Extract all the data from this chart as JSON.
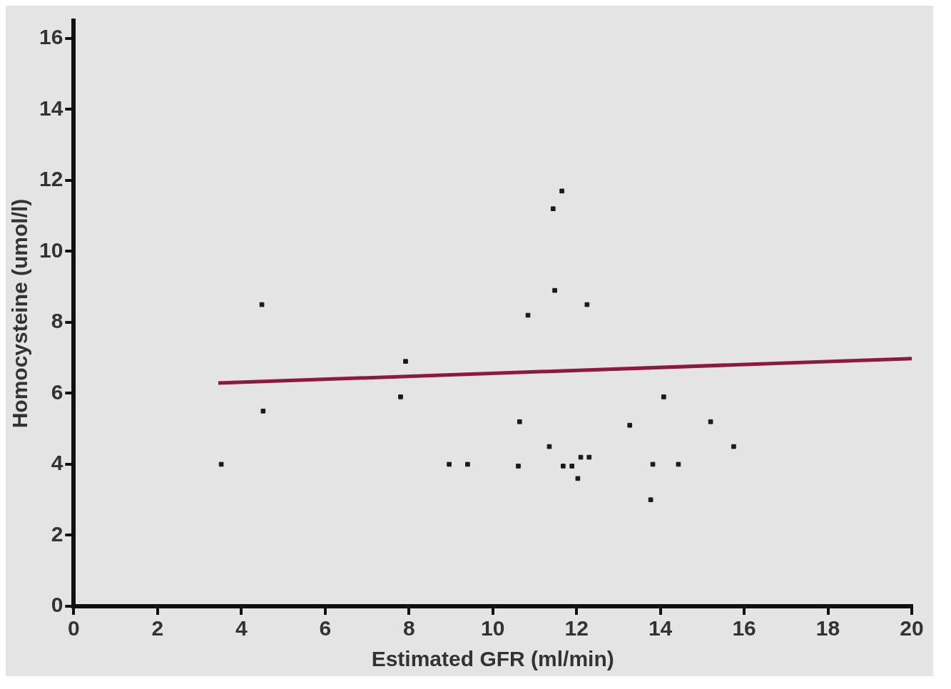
{
  "chart_data": {
    "type": "scatter",
    "xlabel": "Estimated GFR (ml/min)",
    "ylabel": "Homocysteine (umol/l)",
    "xlim": [
      0,
      20
    ],
    "xticks": [
      0,
      2,
      4,
      6,
      8,
      10,
      12,
      14,
      16,
      18,
      20
    ],
    "ylim": [
      0,
      16.5
    ],
    "yticks": [
      0,
      2,
      4,
      6,
      8,
      10,
      12,
      14,
      16
    ],
    "grid": false,
    "legend": false,
    "marker": "square",
    "series": [
      {
        "type": "scatter",
        "color": "#1a1a1a",
        "x": [
          3.52,
          4.49,
          4.52,
          7.8,
          7.92,
          8.96,
          9.4,
          10.61,
          10.64,
          10.84,
          11.35,
          11.44,
          11.48,
          11.65,
          11.68,
          11.89,
          12.03,
          12.1,
          12.3,
          12.25,
          13.27,
          13.77,
          13.82,
          14.08,
          14.43,
          15.2,
          15.75
        ],
        "values": [
          4.0,
          8.5,
          5.5,
          5.9,
          6.9,
          4.0,
          4.0,
          3.95,
          5.2,
          8.2,
          4.5,
          11.2,
          8.9,
          11.7,
          3.95,
          3.95,
          3.6,
          4.2,
          4.2,
          8.5,
          5.1,
          3.0,
          4.0,
          5.9,
          4.0,
          5.2,
          4.5
        ]
      },
      {
        "type": "line",
        "color": "#8b1a3e",
        "x": [
          3.45,
          20
        ],
        "values": [
          6.29,
          6.98
        ],
        "marker": "none",
        "line_style": "solid"
      }
    ]
  }
}
